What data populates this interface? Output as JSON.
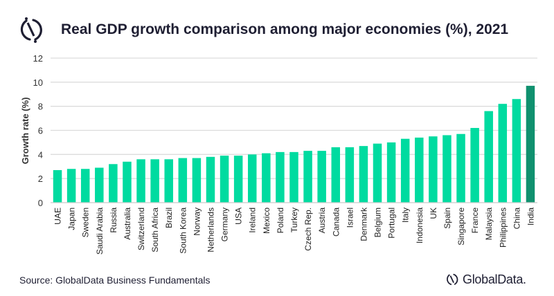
{
  "title": "Real GDP growth comparison among major economies (%), 2021",
  "source": "Source: GlobalData Business Fundamentals",
  "brand": "GlobalData.",
  "colors": {
    "bar": "#00dba0",
    "highlight": "#10916f",
    "grid": "#dcdcdc",
    "text": "#1f1f33"
  },
  "chart_data": {
    "type": "bar",
    "title": "Real GDP growth comparison among major economies (%), 2021",
    "ylabel": "Growth rate (%)",
    "xlabel": "",
    "ylim": [
      0,
      12
    ],
    "yticks": [
      0,
      2,
      4,
      6,
      8,
      10,
      12
    ],
    "grid": true,
    "highlighted": "India",
    "categories": [
      "UAE",
      "Japan",
      "Sweden",
      "Saudi Arabia",
      "Russia",
      "Australia",
      "Switzerland",
      "South Africa",
      "Brazil",
      "South Korea",
      "Norway",
      "Netherlands",
      "Germany",
      "USA",
      "Ireland",
      "Mexico",
      "Poland",
      "Turkey",
      "Czech Rep.",
      "Austria",
      "Canada",
      "Israel",
      "Denmark",
      "Belgium",
      "Portugal",
      "Italy",
      "Indonesia",
      "UK",
      "Spain",
      "Singapore",
      "France",
      "Malaysia",
      "Philippines",
      "China",
      "India"
    ],
    "values": [
      2.7,
      2.8,
      2.8,
      2.9,
      3.2,
      3.4,
      3.6,
      3.6,
      3.6,
      3.7,
      3.7,
      3.8,
      3.9,
      3.9,
      4.0,
      4.1,
      4.2,
      4.2,
      4.3,
      4.3,
      4.6,
      4.6,
      4.7,
      4.9,
      5.0,
      5.3,
      5.4,
      5.5,
      5.6,
      5.7,
      6.2,
      7.6,
      8.2,
      8.6,
      9.7
    ]
  }
}
